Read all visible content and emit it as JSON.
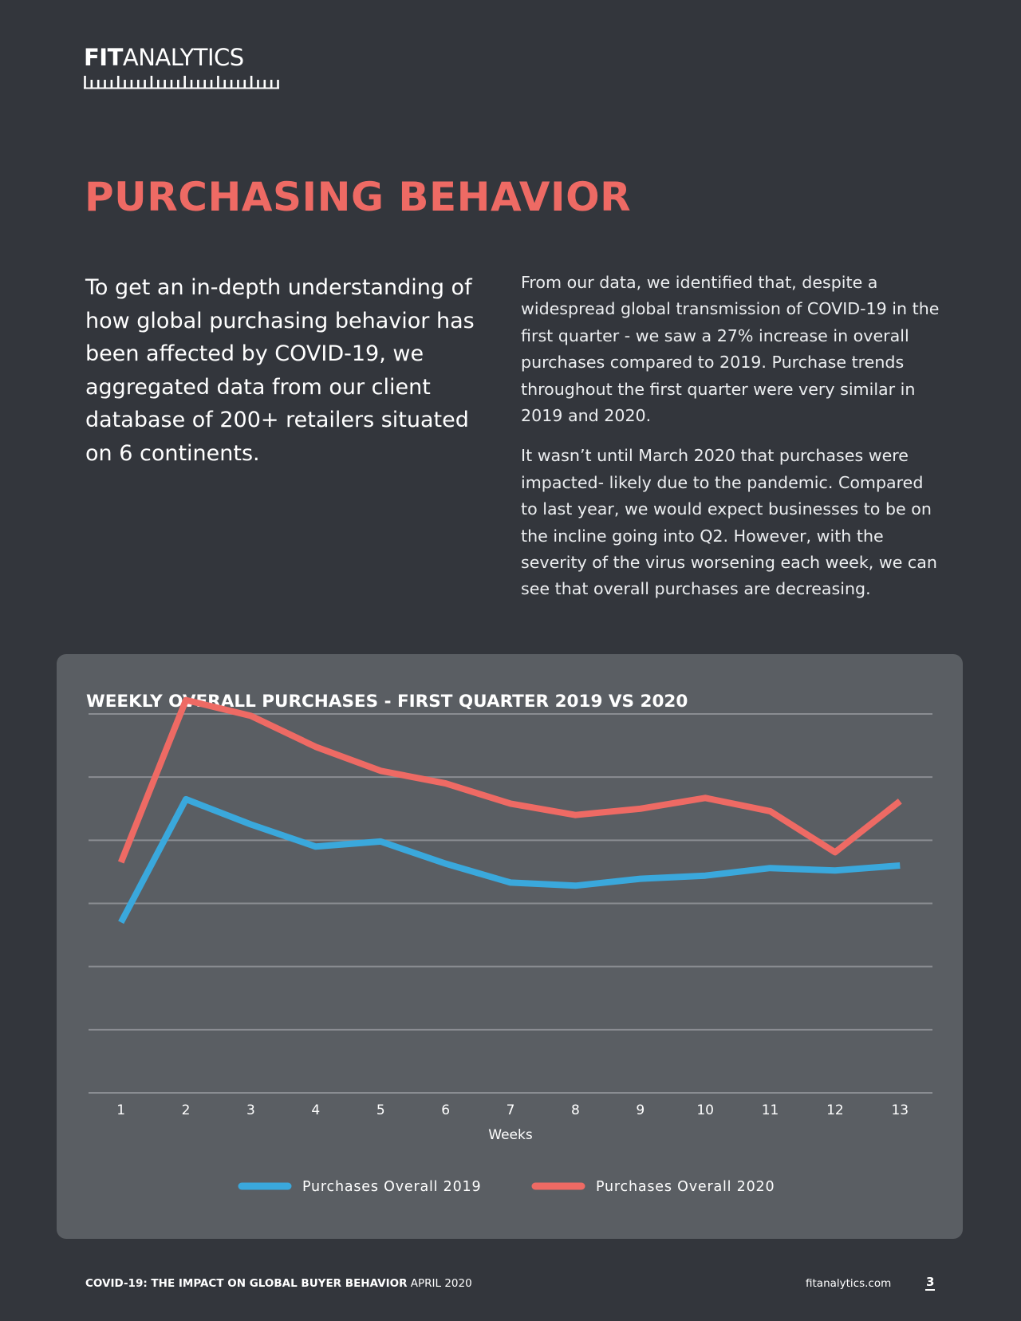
{
  "brand": {
    "logo_bold": "FIT",
    "logo_light": "ANALYTICS"
  },
  "page": {
    "title": "PURCHASING BEHAVIOR",
    "intro": "To get an in-depth understanding of how global purchasing behavior has been affected by COVID-19, we aggregated data from our client database of 200+ retailers situated on 6 continents.",
    "paragraph1": "From our data, we identified that, despite a widespread global transmission of COVID-19 in the first quarter - we saw a 27% increase in overall purchases compared to 2019. Purchase trends throughout the first quarter were very similar in 2019 and 2020.",
    "paragraph2": "It wasn’t until March 2020 that purchases were impacted- likely due to the pandemic. Compared to last year, we would expect businesses to be on the incline going into Q2. However, with the severity of the virus worsening each week, we can see that overall purchases are decreasing."
  },
  "chart_data": {
    "type": "line",
    "title": "WEEKLY OVERALL PURCHASES - FIRST QUARTER 2019 VS 2020",
    "xlabel": "Weeks",
    "ylabel": "",
    "x": [
      1,
      2,
      3,
      4,
      5,
      6,
      7,
      8,
      9,
      10,
      11,
      12,
      13
    ],
    "ylim": [
      0,
      6
    ],
    "y_ticks_labeled": false,
    "grid": "horizontal",
    "legend_position": "bottom-center",
    "series": [
      {
        "name": "Purchases Overall 2019",
        "color": "#3aa8dc",
        "values": [
          2.7,
          4.65,
          4.25,
          3.9,
          3.98,
          3.63,
          3.33,
          3.28,
          3.39,
          3.44,
          3.56,
          3.52,
          3.6
        ]
      },
      {
        "name": "Purchases Overall 2020",
        "color": "#ee6a64",
        "values": [
          3.65,
          6.22,
          5.97,
          5.48,
          5.1,
          4.9,
          4.58,
          4.4,
          4.5,
          4.67,
          4.46,
          3.81,
          4.62
        ]
      }
    ]
  },
  "footer": {
    "report_title": "COVID-19: THE IMPACT ON GLOBAL BUYER BEHAVIOR",
    "date": "APRIL 2020",
    "site": "fitanalytics.com",
    "page_number": "3"
  }
}
